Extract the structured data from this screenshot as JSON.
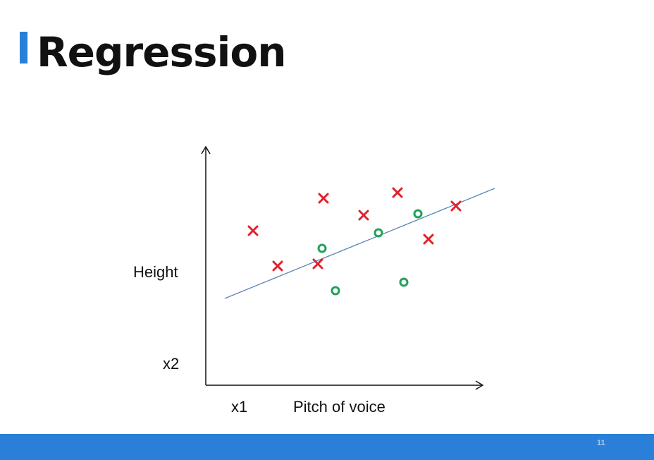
{
  "slide": {
    "title": "Regression",
    "page_number": "11"
  },
  "diagram": {
    "y_axis_label": "Height",
    "y_axis_var": "x2",
    "x_axis_var": "x1",
    "x_axis_label": "Pitch of voice"
  },
  "colors": {
    "accent": "#2a7fd8",
    "cross": "#e0202a",
    "circle": "#22a05a",
    "line": "#5a87b5"
  }
}
